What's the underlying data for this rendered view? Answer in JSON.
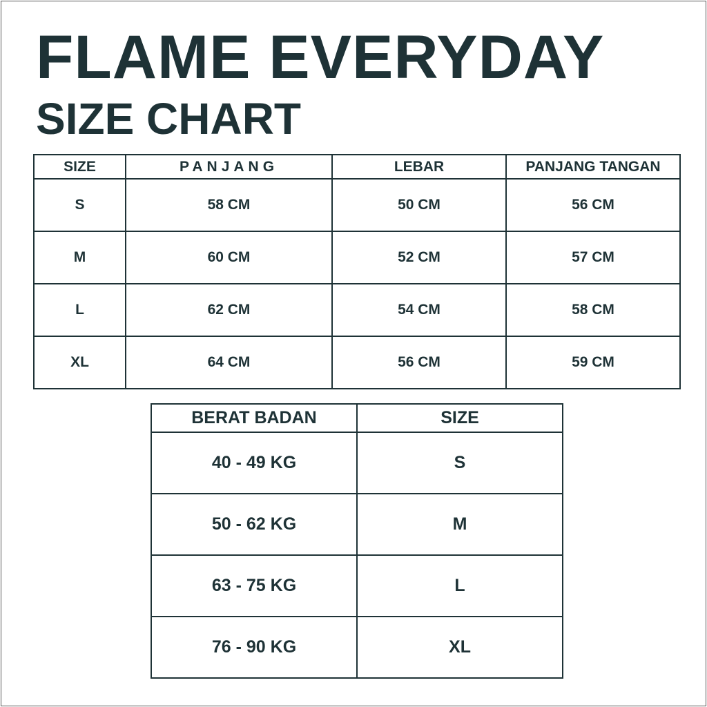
{
  "title": "FLAME EVERYDAY",
  "subtitle": "SIZE CHART",
  "colors": {
    "text": "#1e3236",
    "background": "#ffffff"
  },
  "measurement_table": {
    "headers": [
      "SIZE",
      "PANJANG",
      "LEBAR",
      "PANJANG TANGAN"
    ],
    "rows": [
      [
        "S",
        "58 CM",
        "50 CM",
        "56 CM"
      ],
      [
        "M",
        "60 CM",
        "52 CM",
        "57 CM"
      ],
      [
        "L",
        "62 CM",
        "54 CM",
        "58 CM"
      ],
      [
        "XL",
        "64 CM",
        "56 CM",
        "59 CM"
      ]
    ]
  },
  "weight_table": {
    "headers": [
      "BERAT BADAN",
      "SIZE"
    ],
    "rows": [
      [
        "40 - 49 KG",
        "S"
      ],
      [
        "50 - 62 KG",
        "M"
      ],
      [
        "63 - 75 KG",
        "L"
      ],
      [
        "76 - 90 KG",
        "XL"
      ]
    ]
  }
}
